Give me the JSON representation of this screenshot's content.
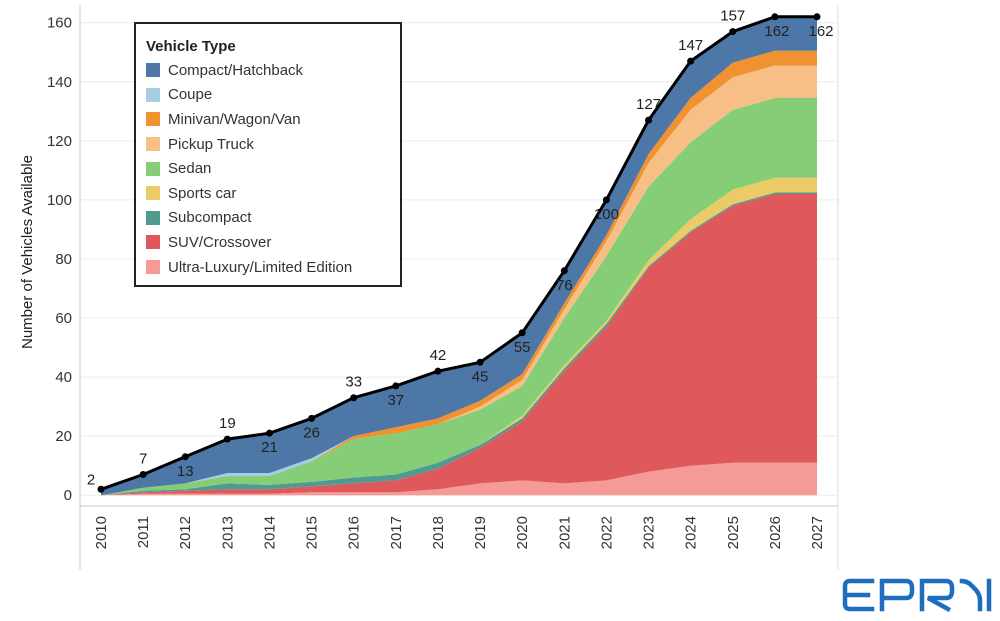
{
  "chart_data": {
    "type": "area",
    "ylabel": "Number of Vehicles Available",
    "xlabel": "",
    "ylim": [
      -4,
      166
    ],
    "yticks": [
      0,
      20,
      40,
      60,
      80,
      100,
      120,
      140,
      160
    ],
    "x": [
      "2010",
      "2011",
      "2012",
      "2013",
      "2014",
      "2015",
      "2016",
      "2017",
      "2018",
      "2019",
      "2020",
      "2021",
      "2022",
      "2023",
      "2024",
      "2025",
      "2026",
      "2027"
    ],
    "totals": [
      2,
      7,
      13,
      19,
      21,
      26,
      33,
      37,
      42,
      45,
      55,
      76,
      100,
      127,
      147,
      157,
      162,
      162
    ],
    "legend_title": "Vehicle Type",
    "series": [
      {
        "name": "Ultra-Luxury/Limited Edition",
        "color": "#f59a97",
        "values": [
          0,
          0.5,
          0.5,
          0.5,
          0.5,
          1,
          1,
          1,
          2,
          4,
          5,
          4,
          5,
          8,
          10,
          11,
          11,
          11
        ]
      },
      {
        "name": "SUV/Crossover",
        "color": "#df585c",
        "values": [
          0,
          0.5,
          1,
          1.5,
          1.5,
          2,
          3,
          4,
          7,
          12,
          20,
          38,
          52,
          69,
          79,
          87,
          91,
          91
        ]
      },
      {
        "name": "Subcompact",
        "color": "#4f9a91",
        "values": [
          0,
          0.5,
          0.5,
          2,
          1.5,
          1.5,
          2,
          2,
          2,
          1,
          1,
          1,
          1,
          0.5,
          0.5,
          0.5,
          0.5,
          0.5
        ]
      },
      {
        "name": "Sports car",
        "color": "#ebcb66",
        "values": [
          0,
          0,
          0,
          0,
          0,
          0,
          0,
          0,
          0,
          0,
          1,
          1,
          1,
          2,
          4,
          5,
          5,
          5
        ]
      },
      {
        "name": "Sedan",
        "color": "#86cd77",
        "values": [
          0,
          1,
          2,
          2.5,
          3,
          7,
          13,
          14,
          13,
          12,
          10,
          16,
          22,
          25,
          26,
          27,
          27,
          27
        ]
      },
      {
        "name": "Pickup Truck",
        "color": "#f7bf85",
        "values": [
          0,
          0,
          0,
          0,
          0,
          0,
          0,
          0,
          0,
          1,
          2,
          3,
          5,
          8,
          11,
          11,
          11,
          11
        ]
      },
      {
        "name": "Minivan/Wagon/Van",
        "color": "#f0922f",
        "values": [
          0,
          0,
          0,
          0,
          0,
          0,
          1,
          2,
          2,
          2,
          2,
          2,
          2,
          3,
          4,
          5,
          5,
          5
        ]
      },
      {
        "name": "Coupe",
        "color": "#a5cde3",
        "values": [
          0,
          0,
          0,
          1,
          1,
          1,
          0,
          0,
          0,
          0,
          0,
          0,
          0,
          0,
          0,
          0,
          0,
          0
        ]
      },
      {
        "name": "Compact/Hatchback",
        "color": "#4d77a7",
        "values": [
          2,
          4.5,
          9,
          11.5,
          13.5,
          14,
          13,
          14,
          16,
          13,
          14,
          11,
          12,
          11.5,
          12.5,
          10.5,
          11.5,
          11.5
        ]
      }
    ],
    "legend_order": [
      "Compact/Hatchback",
      "Coupe",
      "Minivan/Wagon/Van",
      "Pickup Truck",
      "Sedan",
      "Sports car",
      "Subcompact",
      "SUV/Crossover",
      "Ultra-Luxury/Limited Edition"
    ],
    "total_line_color": "#000000",
    "grid": "horizontal",
    "legend_position": "top-left"
  },
  "logo": {
    "text": "EPRI",
    "color": "#1f6dbf"
  }
}
